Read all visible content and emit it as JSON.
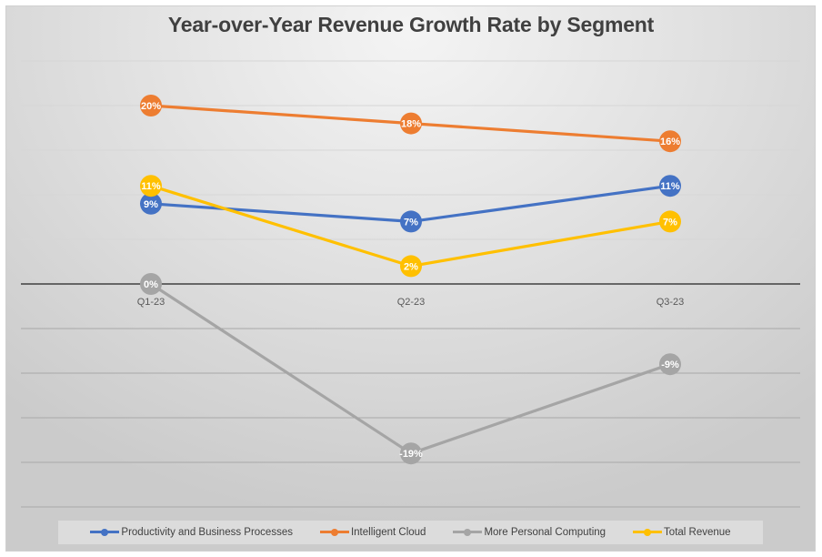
{
  "chart_data": {
    "type": "line",
    "title": "Year-over-Year Revenue Growth Rate by Segment",
    "xlabel": "",
    "ylabel": "",
    "categories": [
      "Q1-23",
      "Q2-23",
      "Q3-23"
    ],
    "ylim": [
      -25,
      25
    ],
    "ytick_step": 5,
    "show_y_tick_labels": false,
    "grid": true,
    "legend_position": "bottom",
    "value_suffix": "%",
    "series": [
      {
        "name": "Productivity and Business Processes",
        "color": "#4472C4",
        "values": [
          9,
          7,
          11
        ]
      },
      {
        "name": "Intelligent Cloud",
        "color": "#ED7D31",
        "values": [
          20,
          18,
          16
        ]
      },
      {
        "name": "More Personal Computing",
        "color": "#A5A5A5",
        "values": [
          0,
          -19,
          -9
        ]
      },
      {
        "name": "Total Revenue",
        "color": "#FFC000",
        "values": [
          11,
          2,
          7
        ]
      }
    ]
  }
}
